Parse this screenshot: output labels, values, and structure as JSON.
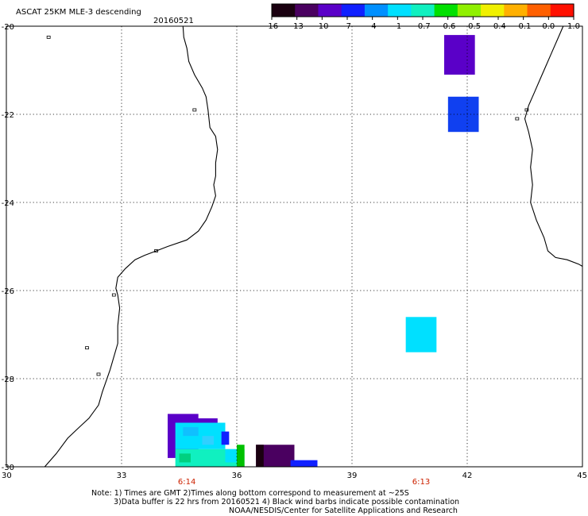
{
  "title": "ASCAT 25KM MLE-3 descending",
  "date": "20160521",
  "colorbar": {
    "labels": [
      "-16",
      "-13",
      "-10",
      "-7",
      "-4",
      "-1",
      "-0.7",
      "-0.6",
      "-0.5",
      "-0.4",
      "-0.1",
      "0.0",
      "1.0"
    ],
    "colors": [
      "#1a0010",
      "#4a0060",
      "#5a00c8",
      "#1020ff",
      "#0090ff",
      "#00e0ff",
      "#10f0c0",
      "#00e000",
      "#90f000",
      "#f0f000",
      "#ffb000",
      "#ff6000",
      "#ff1000"
    ]
  },
  "axes": {
    "lat_ticks": [
      "-20",
      "-22",
      "-24",
      "-26",
      "-28",
      "-30"
    ],
    "lon_ticks": [
      "30",
      "33",
      "36",
      "39",
      "42",
      "45"
    ],
    "lat_values": [
      -20,
      -22,
      -24,
      -26,
      -28,
      -30
    ],
    "lon_values": [
      30,
      33,
      36,
      39,
      42,
      45
    ],
    "lat_range": [
      -30,
      -20
    ],
    "lon_range": [
      30,
      45
    ]
  },
  "pass_times": [
    {
      "label": "6:14",
      "lon": 34.7
    },
    {
      "label": "6:13",
      "lon": 40.8
    }
  ],
  "data_cells": [
    {
      "lon0": 41.4,
      "lon1": 42.2,
      "lat0": -21.1,
      "lat1": -20.2,
      "color": "#5a00c8"
    },
    {
      "lon0": 41.5,
      "lon1": 42.3,
      "lat0": -22.4,
      "lat1": -21.6,
      "color": "#1040f0"
    },
    {
      "lon0": 40.4,
      "lon1": 41.2,
      "lat0": -27.4,
      "lat1": -26.6,
      "color": "#00e0ff"
    },
    {
      "lon0": 34.2,
      "lon1": 35.0,
      "lat0": -29.8,
      "lat1": -28.8,
      "color": "#5a00c8"
    },
    {
      "lon0": 34.9,
      "lon1": 35.5,
      "lat0": -29.0,
      "lat1": -28.9,
      "color": "#5a00c8"
    },
    {
      "lon0": 34.4,
      "lon1": 35.7,
      "lat0": -29.6,
      "lat1": -29.0,
      "color": "#00e0ff"
    },
    {
      "lon0": 35.6,
      "lon1": 35.8,
      "lat0": -29.5,
      "lat1": -29.2,
      "color": "#1020ff"
    },
    {
      "lon0": 34.6,
      "lon1": 35.0,
      "lat0": -29.3,
      "lat1": -29.1,
      "color": "#10c0ff"
    },
    {
      "lon0": 35.1,
      "lon1": 35.4,
      "lat0": -29.5,
      "lat1": -29.3,
      "color": "#30d0ff"
    },
    {
      "lon0": 34.4,
      "lon1": 36.2,
      "lat0": -30.0,
      "lat1": -29.6,
      "color": "#10f0c0"
    },
    {
      "lon0": 34.5,
      "lon1": 34.8,
      "lat0": -29.9,
      "lat1": -29.7,
      "color": "#00d080"
    },
    {
      "lon0": 35.7,
      "lon1": 36.0,
      "lat0": -29.9,
      "lat1": -29.6,
      "color": "#00e0ff"
    },
    {
      "lon0": 36.0,
      "lon1": 36.2,
      "lat0": -30.0,
      "lat1": -29.5,
      "color": "#00c000"
    },
    {
      "lon0": 36.5,
      "lon1": 37.5,
      "lat0": -30.0,
      "lat1": -29.5,
      "color": "#4a0060"
    },
    {
      "lon0": 36.5,
      "lon1": 36.7,
      "lat0": -30.0,
      "lat1": -29.5,
      "color": "#1a0010"
    },
    {
      "lon0": 37.4,
      "lon1": 38.1,
      "lat0": -30.0,
      "lat1": -29.85,
      "color": "#1020ff"
    }
  ],
  "notes": {
    "line1": "Note: 1) Times are GMT 2)Times along bottom correspond to measurement at ~25S",
    "line2": "3)Data buffer is 22 hrs from 20160521 4) Black wind barbs indicate possible contamination",
    "line3": "NOAA/NESDIS/Center for Satellite Applications and Research"
  },
  "coastlines": {
    "africa": [
      [
        34.6,
        -20.0
      ],
      [
        34.62,
        -20.25
      ],
      [
        34.7,
        -20.5
      ],
      [
        34.75,
        -20.8
      ],
      [
        34.9,
        -21.1
      ],
      [
        35.1,
        -21.4
      ],
      [
        35.2,
        -21.6
      ],
      [
        35.25,
        -21.9
      ],
      [
        35.3,
        -22.3
      ],
      [
        35.45,
        -22.5
      ],
      [
        35.5,
        -22.8
      ],
      [
        35.45,
        -23.1
      ],
      [
        35.45,
        -23.4
      ],
      [
        35.4,
        -23.6
      ],
      [
        35.45,
        -23.85
      ],
      [
        35.35,
        -24.1
      ],
      [
        35.2,
        -24.4
      ],
      [
        35.0,
        -24.65
      ],
      [
        34.7,
        -24.85
      ],
      [
        34.2,
        -25.0
      ],
      [
        33.9,
        -25.1
      ],
      [
        33.6,
        -25.2
      ],
      [
        33.35,
        -25.3
      ],
      [
        33.1,
        -25.5
      ],
      [
        32.9,
        -25.7
      ],
      [
        32.85,
        -25.95
      ],
      [
        32.9,
        -26.1
      ],
      [
        32.95,
        -26.4
      ],
      [
        32.9,
        -26.8
      ],
      [
        32.9,
        -27.2
      ],
      [
        32.7,
        -27.8
      ],
      [
        32.5,
        -28.3
      ],
      [
        32.4,
        -28.6
      ],
      [
        32.15,
        -28.9
      ],
      [
        31.9,
        -29.1
      ],
      [
        31.6,
        -29.35
      ],
      [
        31.3,
        -29.7
      ],
      [
        31.0,
        -30.0
      ]
    ],
    "madagascar": [
      [
        44.5,
        -20.0
      ],
      [
        44.4,
        -20.2
      ],
      [
        44.2,
        -20.6
      ],
      [
        44.05,
        -20.9
      ],
      [
        43.9,
        -21.2
      ],
      [
        43.75,
        -21.5
      ],
      [
        43.6,
        -21.8
      ],
      [
        43.5,
        -22.1
      ],
      [
        43.6,
        -22.4
      ],
      [
        43.7,
        -22.8
      ],
      [
        43.65,
        -23.2
      ],
      [
        43.7,
        -23.6
      ],
      [
        43.65,
        -24.0
      ],
      [
        43.8,
        -24.4
      ],
      [
        44.0,
        -24.8
      ],
      [
        44.1,
        -25.1
      ],
      [
        44.3,
        -25.25
      ],
      [
        44.6,
        -25.3
      ],
      [
        44.9,
        -25.4
      ],
      [
        45.0,
        -25.45
      ]
    ],
    "islands": [
      {
        "lon": 31.1,
        "lat": -20.25
      },
      {
        "lon": 34.9,
        "lat": -21.9
      },
      {
        "lon": 33.9,
        "lat": -25.1
      },
      {
        "lon": 32.8,
        "lat": -26.1
      },
      {
        "lon": 32.1,
        "lat": -27.3
      },
      {
        "lon": 32.4,
        "lat": -27.9
      },
      {
        "lon": 43.3,
        "lat": -22.1
      },
      {
        "lon": 43.55,
        "lat": -21.9
      }
    ]
  }
}
